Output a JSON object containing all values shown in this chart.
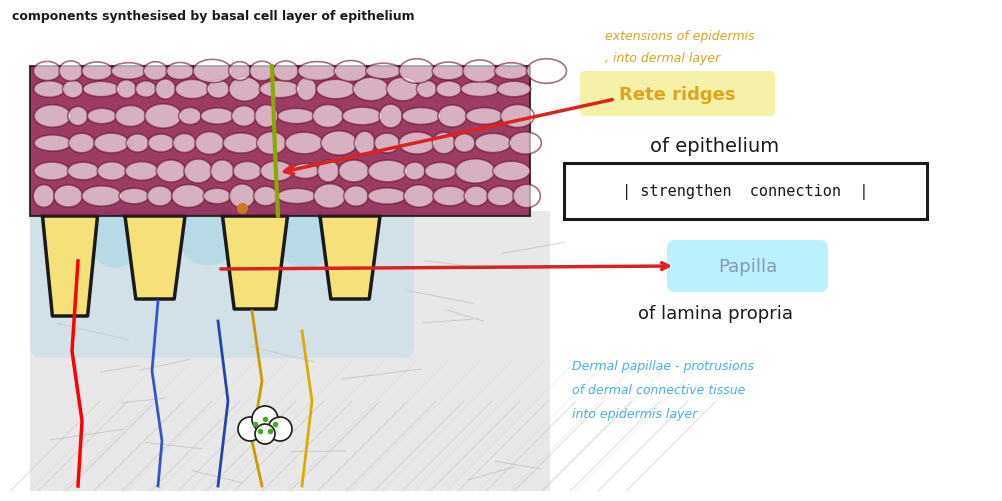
{
  "bg_color": "#ffffff",
  "top_text": "components synthesised by basal cell layer of epithelium",
  "annotation_rete": "Rete ridges",
  "annotation_rete_sub1": "of epithelium",
  "annotation_strengthen": "| strengthen  connection  |",
  "annotation_papilla": "Papilla",
  "annotation_papilla_sub": "of lamina propria",
  "annotation_extensions_1": "extensions of epidermis",
  "annotation_extensions_2": ", into dermal layer",
  "annotation_dermal_1": "Dermal papillae - protrusions",
  "annotation_dermal_2": "of dermal connective tissue",
  "annotation_dermal_3": "into epidermis layer",
  "epithelium_color": "#8B1A4A",
  "rete_fill_color": "#F5E07A",
  "rete_outline_color": "#1a1a1a",
  "papilla_fill_color": "#ADD8E6",
  "text_color_annotation": "#DAA520",
  "text_color_black": "#1a1a1a",
  "text_color_blue": "#4AAFE0",
  "arrow_color_red": "#DD2222",
  "highlight_rete": "#F5F0A0",
  "highlight_papilla": "#AAEEFF",
  "dermal_bg": "#e8e8e8"
}
